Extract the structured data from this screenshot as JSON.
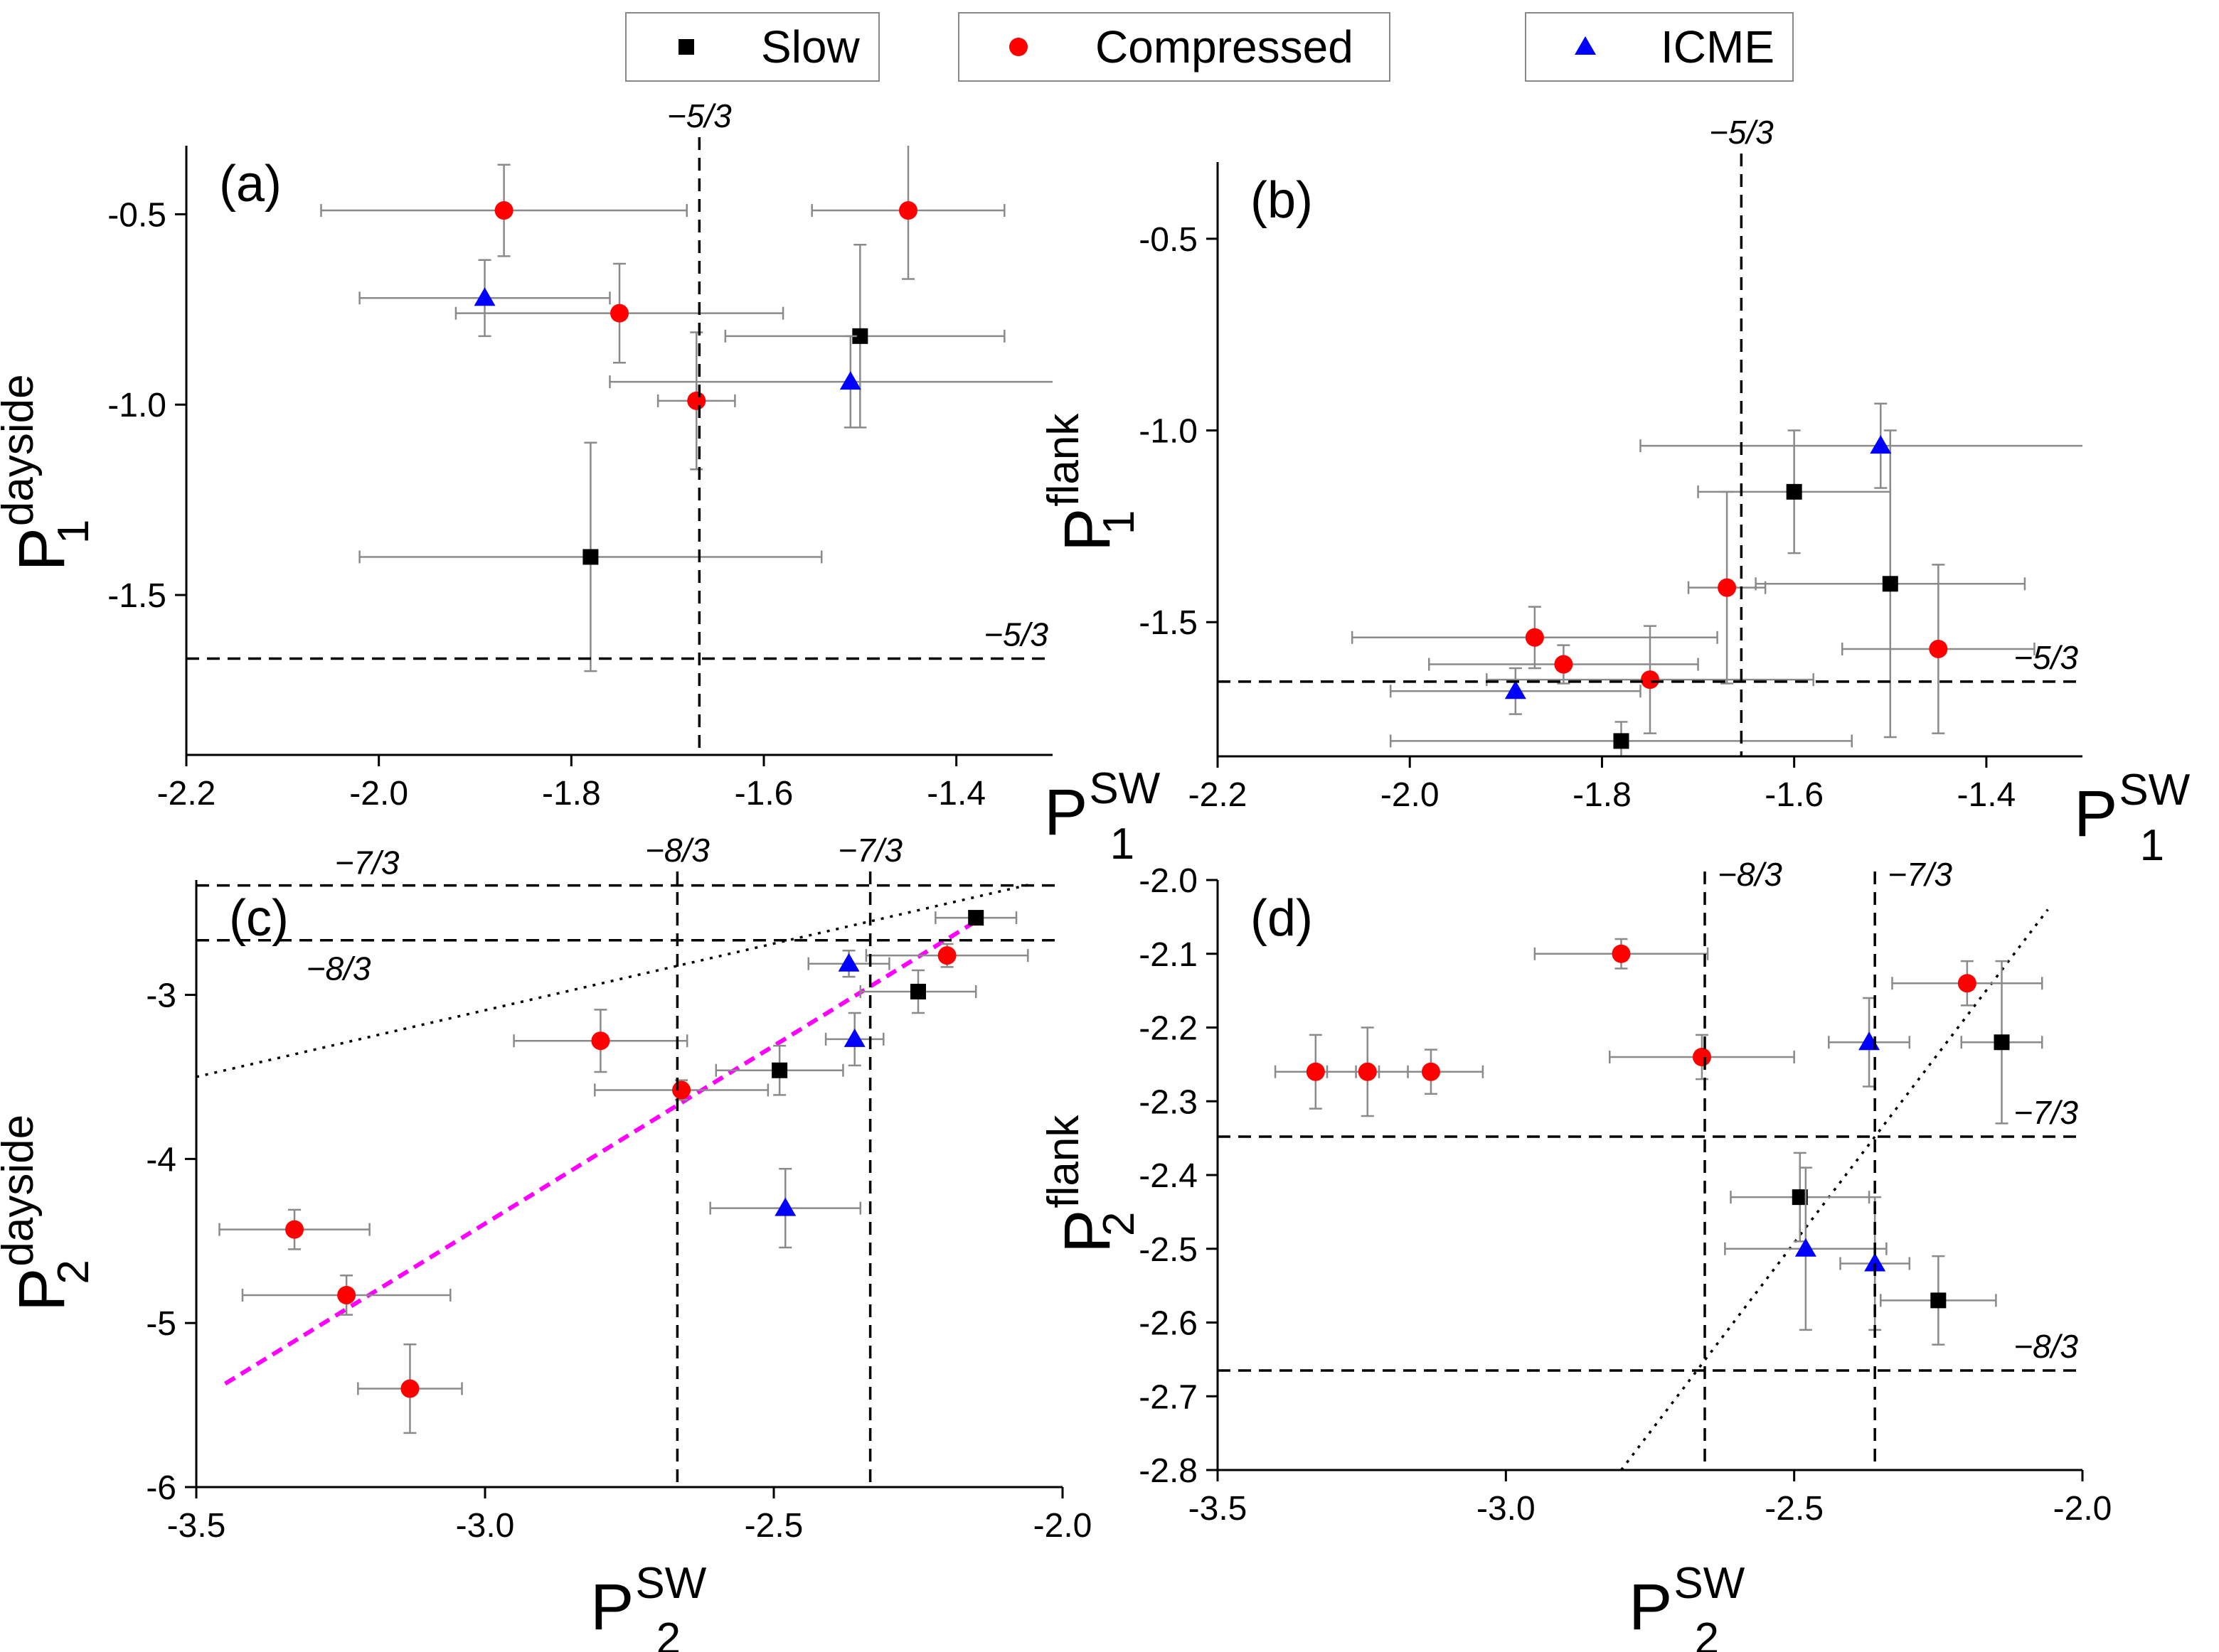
{
  "legend": [
    {
      "label": "Slow",
      "marker": "square",
      "color": "#000000"
    },
    {
      "label": "Compressed",
      "marker": "circle",
      "color": "#ff0000"
    },
    {
      "label": "ICME",
      "marker": "triangle",
      "color": "#0000ff"
    }
  ],
  "chart_data": [
    {
      "type": "scatter",
      "panel": "(a)",
      "xlabel": {
        "main": "P",
        "sup": "SW",
        "sub": "1"
      },
      "ylabel": {
        "main": "P",
        "sup": "dayside",
        "sub": "1"
      },
      "xlim": [
        -2.2,
        -1.3
      ],
      "ylim": [
        -1.92,
        -0.32
      ],
      "xticks": [
        -2.2,
        -2.0,
        -1.8,
        -1.6,
        -1.4
      ],
      "yticks": [
        -0.5,
        -1.0,
        -1.5
      ],
      "xticklabels": [
        "-2.2",
        "-2.0",
        "-1.8",
        "-1.6",
        "-1.4"
      ],
      "yticklabels": [
        "-0.5",
        "-1.0",
        "-1.5"
      ],
      "ref_lines": [
        {
          "orient": "v",
          "value": -1.667,
          "style": "dashed",
          "label": "−5/3",
          "label_pos": "top"
        },
        {
          "orient": "h",
          "value": -1.667,
          "style": "dashed",
          "label": "−5/3",
          "label_pos": "right"
        }
      ],
      "series": [
        {
          "name": "Slow",
          "points": [
            {
              "x": -1.5,
              "y": -0.82,
              "xerr": [
                0.14,
                0.15
              ],
              "yerr": [
                0.24,
                0.24
              ]
            },
            {
              "x": -1.78,
              "y": -1.4,
              "xerr": [
                0.24,
                0.24
              ],
              "yerr": [
                0.3,
                0.3
              ]
            }
          ]
        },
        {
          "name": "Compressed",
          "points": [
            {
              "x": -1.87,
              "y": -0.49,
              "xerr": [
                0.19,
                0.19
              ],
              "yerr": [
                0.12,
                0.12
              ]
            },
            {
              "x": -1.45,
              "y": -0.49,
              "xerr": [
                0.1,
                0.1
              ],
              "yerr": [
                0.18,
                0.18
              ]
            },
            {
              "x": -1.75,
              "y": -0.76,
              "xerr": [
                0.17,
                0.17
              ],
              "yerr": [
                0.13,
                0.13
              ]
            },
            {
              "x": -1.67,
              "y": -0.99,
              "xerr": [
                0.04,
                0.04
              ],
              "yerr": [
                0.18,
                0.18
              ]
            }
          ]
        },
        {
          "name": "ICME",
          "points": [
            {
              "x": -1.89,
              "y": -0.72,
              "xerr": [
                0.13,
                0.13
              ],
              "yerr": [
                0.1,
                0.1
              ]
            },
            {
              "x": -1.51,
              "y": -0.94,
              "xerr": [
                0.25,
                0.25
              ],
              "yerr": [
                0.12,
                0.12
              ]
            }
          ]
        }
      ]
    },
    {
      "type": "scatter",
      "panel": "(b)",
      "xlabel": {
        "main": "P",
        "sup": "SW",
        "sub": "1"
      },
      "ylabel": {
        "main": "P",
        "sup": "flank",
        "sub": "1"
      },
      "xlim": [
        -2.2,
        -1.3
      ],
      "ylim": [
        -1.85,
        -0.3
      ],
      "xticks": [
        -2.2,
        -2.0,
        -1.8,
        -1.6,
        -1.4
      ],
      "yticks": [
        -0.5,
        -1.0,
        -1.5
      ],
      "xticklabels": [
        "-2.2",
        "-2.0",
        "-1.8",
        "-1.6",
        "-1.4"
      ],
      "yticklabels": [
        "-0.5",
        "-1.0",
        "-1.5"
      ],
      "ref_lines": [
        {
          "orient": "v",
          "value": -1.655,
          "style": "dashed",
          "label": "−5/3",
          "label_pos": "top"
        },
        {
          "orient": "h",
          "value": -1.655,
          "style": "dashed",
          "label": "−5/3",
          "label_pos": "right"
        }
      ],
      "series": [
        {
          "name": "Slow",
          "points": [
            {
              "x": -1.6,
              "y": -1.16,
              "xerr": [
                0.1,
                0.1
              ],
              "yerr": [
                0.16,
                0.16
              ]
            },
            {
              "x": -1.5,
              "y": -1.4,
              "xerr": [
                0.14,
                0.14
              ],
              "yerr": [
                0.4,
                0.4
              ]
            },
            {
              "x": -1.78,
              "y": -1.81,
              "xerr": [
                0.24,
                0.24
              ],
              "yerr": [
                0.05,
                0.05
              ]
            }
          ]
        },
        {
          "name": "Compressed",
          "points": [
            {
              "x": -1.87,
              "y": -1.54,
              "xerr": [
                0.19,
                0.19
              ],
              "yerr": [
                0.08,
                0.08
              ]
            },
            {
              "x": -1.84,
              "y": -1.61,
              "xerr": [
                0.14,
                0.14
              ],
              "yerr": [
                0.05,
                0.05
              ]
            },
            {
              "x": -1.75,
              "y": -1.65,
              "xerr": [
                0.17,
                0.17
              ],
              "yerr": [
                0.14,
                0.14
              ]
            },
            {
              "x": -1.67,
              "y": -1.41,
              "xerr": [
                0.04,
                0.04
              ],
              "yerr": [
                0.25,
                0.25
              ]
            },
            {
              "x": -1.45,
              "y": -1.57,
              "xerr": [
                0.1,
                0.1
              ],
              "yerr": [
                0.22,
                0.22
              ]
            }
          ]
        },
        {
          "name": "ICME",
          "points": [
            {
              "x": -1.51,
              "y": -1.04,
              "xerr": [
                0.25,
                0.25
              ],
              "yerr": [
                0.11,
                0.11
              ]
            },
            {
              "x": -1.89,
              "y": -1.68,
              "xerr": [
                0.13,
                0.13
              ],
              "yerr": [
                0.06,
                0.06
              ]
            }
          ]
        }
      ]
    },
    {
      "type": "scatter",
      "panel": "(c)",
      "xlabel": {
        "main": "P",
        "sup": "SW",
        "sub": "2"
      },
      "ylabel": {
        "main": "P",
        "sup": "dayside",
        "sub": "2"
      },
      "xlim": [
        -3.5,
        -2.0
      ],
      "ylim": [
        -6.0,
        -2.3
      ],
      "xticks": [
        -3.5,
        -3.0,
        -2.5,
        -2.0
      ],
      "yticks": [
        -3,
        -4,
        -5,
        -6
      ],
      "xticklabels": [
        "-3.5",
        "-3.0",
        "-2.5",
        "-2.0"
      ],
      "yticklabels": [
        "-3",
        "-4",
        "-5",
        "-6"
      ],
      "ref_lines": [
        {
          "orient": "v",
          "value": -2.667,
          "style": "dashed",
          "label": "−8/3",
          "label_pos": "top"
        },
        {
          "orient": "v",
          "value": -2.333,
          "style": "dashed",
          "label": "−7/3",
          "label_pos": "top"
        },
        {
          "orient": "h",
          "value": -2.333,
          "style": "dashed",
          "label": "−7/3",
          "label_pos": "left-above"
        },
        {
          "orient": "h",
          "value": -2.667,
          "style": "dashed",
          "label": "−8/3",
          "label_pos": "left-below"
        }
      ],
      "fit_lines": [
        {
          "style": "dotted",
          "color": "#000000",
          "x": [
            -3.5,
            -2.06
          ],
          "y": [
            -3.5,
            -2.33
          ]
        },
        {
          "style": "dashed",
          "color": "#ff00ff",
          "x": [
            -3.45,
            -2.14
          ],
          "y": [
            -5.37,
            -2.53
          ]
        }
      ],
      "series": [
        {
          "name": "Slow",
          "points": [
            {
              "x": -2.15,
              "y": -2.53,
              "xerr": [
                0.07,
                0.07
              ],
              "yerr": [
                0.03,
                0.03
              ]
            },
            {
              "x": -2.25,
              "y": -2.98,
              "xerr": [
                0.1,
                0.1
              ],
              "yerr": [
                0.13,
                0.13
              ]
            },
            {
              "x": -2.49,
              "y": -3.46,
              "xerr": [
                0.11,
                0.11
              ],
              "yerr": [
                0.15,
                0.15
              ]
            }
          ]
        },
        {
          "name": "Compressed",
          "points": [
            {
              "x": -2.2,
              "y": -2.76,
              "xerr": [
                0.14,
                0.14
              ],
              "yerr": [
                0.07,
                0.07
              ]
            },
            {
              "x": -2.8,
              "y": -3.28,
              "xerr": [
                0.15,
                0.15
              ],
              "yerr": [
                0.19,
                0.19
              ]
            },
            {
              "x": -2.66,
              "y": -3.58,
              "xerr": [
                0.15,
                0.15
              ],
              "yerr": [
                0.06,
                0.06
              ]
            },
            {
              "x": -3.33,
              "y": -4.43,
              "xerr": [
                0.13,
                0.13
              ],
              "yerr": [
                0.12,
                0.12
              ]
            },
            {
              "x": -3.24,
              "y": -4.83,
              "xerr": [
                0.18,
                0.18
              ],
              "yerr": [
                0.12,
                0.12
              ]
            },
            {
              "x": -3.13,
              "y": -5.4,
              "xerr": [
                0.09,
                0.09
              ],
              "yerr": [
                0.27,
                0.27
              ]
            }
          ]
        },
        {
          "name": "ICME",
          "points": [
            {
              "x": -2.37,
              "y": -2.81,
              "xerr": [
                0.07,
                0.07
              ],
              "yerr": [
                0.08,
                0.08
              ]
            },
            {
              "x": -2.36,
              "y": -3.27,
              "xerr": [
                0.05,
                0.05
              ],
              "yerr": [
                0.16,
                0.16
              ]
            },
            {
              "x": -2.48,
              "y": -4.3,
              "xerr": [
                0.13,
                0.13
              ],
              "yerr": [
                0.24,
                0.24
              ]
            }
          ]
        }
      ]
    },
    {
      "type": "scatter",
      "panel": "(d)",
      "xlabel": {
        "main": "P",
        "sup": "SW",
        "sub": "2"
      },
      "ylabel": {
        "main": "P",
        "sup": "flank",
        "sub": "2"
      },
      "xlim": [
        -3.5,
        -2.0
      ],
      "ylim": [
        -2.8,
        -2.0
      ],
      "xticks": [
        -3.5,
        -3.0,
        -2.5,
        -2.0
      ],
      "yticks": [
        -2.0,
        -2.1,
        -2.2,
        -2.3,
        -2.4,
        -2.5,
        -2.6,
        -2.7,
        -2.8
      ],
      "xticklabels": [
        "-3.5",
        "-3.0",
        "-2.5",
        "-2.0"
      ],
      "yticklabels": [
        "-2.0",
        "-2.1",
        "-2.2",
        "-2.3",
        "-2.4",
        "-2.5",
        "-2.6",
        "-2.7",
        "-2.8"
      ],
      "ref_lines": [
        {
          "orient": "v",
          "value": -2.655,
          "style": "dashed",
          "label": "−8/3",
          "label_pos": "top-right"
        },
        {
          "orient": "v",
          "value": -2.36,
          "style": "dashed",
          "label": "−7/3",
          "label_pos": "top-right"
        },
        {
          "orient": "h",
          "value": -2.348,
          "style": "dashed",
          "label": "−7/3",
          "label_pos": "right"
        },
        {
          "orient": "h",
          "value": -2.665,
          "style": "dashed",
          "label": "−8/3",
          "label_pos": "right"
        }
      ],
      "fit_lines": [
        {
          "style": "dotted",
          "color": "#000000",
          "x": [
            -2.8,
            -2.06
          ],
          "y": [
            -2.8,
            -2.04
          ]
        }
      ],
      "series": [
        {
          "name": "Slow",
          "points": [
            {
              "x": -2.14,
              "y": -2.22,
              "xerr": [
                0.07,
                0.07
              ],
              "yerr": [
                0.11,
                0.11
              ]
            },
            {
              "x": -2.49,
              "y": -2.43,
              "xerr": [
                0.12,
                0.12
              ],
              "yerr": [
                0.06,
                0.06
              ]
            },
            {
              "x": -2.25,
              "y": -2.57,
              "xerr": [
                0.1,
                0.1
              ],
              "yerr": [
                0.06,
                0.06
              ]
            }
          ]
        },
        {
          "name": "Compressed",
          "points": [
            {
              "x": -2.8,
              "y": -2.1,
              "xerr": [
                0.15,
                0.15
              ],
              "yerr": [
                0.02,
                0.02
              ]
            },
            {
              "x": -2.2,
              "y": -2.14,
              "xerr": [
                0.13,
                0.13
              ],
              "yerr": [
                0.03,
                0.03
              ]
            },
            {
              "x": -2.66,
              "y": -2.24,
              "xerr": [
                0.16,
                0.16
              ],
              "yerr": [
                0.03,
                0.03
              ]
            },
            {
              "x": -3.33,
              "y": -2.26,
              "xerr": [
                0.07,
                0.07
              ],
              "yerr": [
                0.05,
                0.05
              ]
            },
            {
              "x": -3.24,
              "y": -2.26,
              "xerr": [
                0.07,
                0.07
              ],
              "yerr": [
                0.06,
                0.06
              ]
            },
            {
              "x": -3.13,
              "y": -2.26,
              "xerr": [
                0.09,
                0.09
              ],
              "yerr": [
                0.03,
                0.03
              ]
            }
          ]
        },
        {
          "name": "ICME",
          "points": [
            {
              "x": -2.37,
              "y": -2.22,
              "xerr": [
                0.07,
                0.07
              ],
              "yerr": [
                0.06,
                0.06
              ]
            },
            {
              "x": -2.48,
              "y": -2.5,
              "xerr": [
                0.14,
                0.14
              ],
              "yerr": [
                0.11,
                0.11
              ]
            },
            {
              "x": -2.36,
              "y": -2.52,
              "xerr": [
                0.06,
                0.06
              ],
              "yerr": [
                0.09,
                0.09
              ]
            }
          ]
        }
      ]
    }
  ]
}
